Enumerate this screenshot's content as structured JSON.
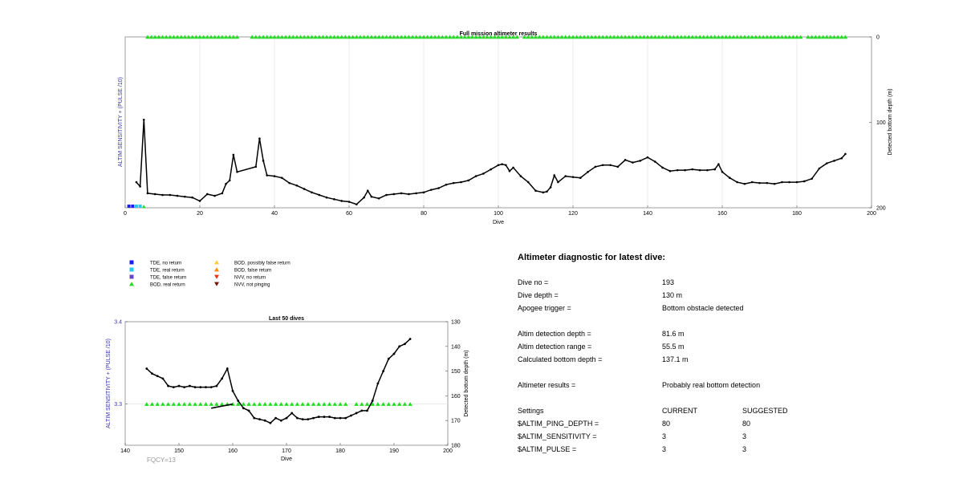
{
  "chart_data": [
    {
      "type": "line",
      "title": "Full mission altimeter results",
      "xlabel": "Dive",
      "ylabel_left": "ALTIM SENSITIVITY + (PULSE /10)",
      "ylabel_right": "Detected bottom depth (m)",
      "xlim": [
        0,
        200
      ],
      "xticks": [
        0,
        20,
        40,
        60,
        80,
        100,
        120,
        140,
        160,
        180,
        200
      ],
      "ylim_right": [
        200,
        0
      ],
      "yticks_right": [
        0,
        100,
        200
      ],
      "grid": "vertical",
      "series": [
        {
          "kind": "bottom_depth_line",
          "color": "#000000",
          "x": [
            3,
            4,
            5,
            6,
            8,
            10,
            12,
            14,
            16,
            18,
            20,
            22,
            24,
            26,
            27,
            28,
            29,
            30,
            35,
            36,
            37,
            38,
            40,
            42,
            44,
            46,
            48,
            50,
            52,
            54,
            56,
            58,
            60,
            62,
            64,
            65,
            66,
            68,
            70,
            72,
            74,
            76,
            78,
            80,
            82,
            84,
            86,
            88,
            90,
            92,
            94,
            96,
            98,
            100,
            101,
            102,
            103,
            104,
            106,
            108,
            110,
            112,
            113,
            114,
            115,
            116,
            118,
            120,
            122,
            124,
            126,
            128,
            130,
            132,
            134,
            136,
            138,
            140,
            142,
            144,
            146,
            148,
            150,
            152,
            154,
            156,
            158,
            159,
            160,
            162,
            164,
            166,
            168,
            170,
            172,
            174,
            176,
            178,
            180,
            182,
            184,
            186,
            188,
            190,
            192,
            193
          ],
          "y": [
            170,
            175,
            97,
            183,
            184,
            185,
            185,
            186,
            187,
            188,
            192,
            184,
            186,
            183,
            172,
            168,
            138,
            158,
            152,
            119,
            145,
            162,
            163,
            165,
            171,
            174,
            178,
            182,
            185,
            188,
            190,
            192,
            193,
            196,
            188,
            180,
            187,
            189,
            185,
            184,
            183,
            184,
            183,
            182,
            179,
            177,
            173,
            171,
            170,
            168,
            163,
            160,
            155,
            150,
            149,
            150,
            157,
            153,
            163,
            170,
            180,
            182,
            181,
            176,
            162,
            170,
            163,
            164,
            165,
            158,
            152,
            150,
            150,
            152,
            144,
            147,
            145,
            141,
            146,
            153,
            157,
            156,
            156,
            155,
            156,
            156,
            155,
            149,
            158,
            165,
            170,
            172,
            170,
            171,
            171,
            172,
            170,
            170,
            170,
            169,
            166,
            154,
            148,
            145,
            142,
            137
          ]
        }
      ],
      "markers_top": {
        "label": "BOD, real return",
        "color": "#22dd22",
        "symbol": "triangle-up",
        "depth": 0,
        "dive_ranges": [
          [
            6,
            30
          ],
          [
            34,
            40
          ],
          [
            41,
            105
          ],
          [
            107,
            181
          ],
          [
            183,
            193
          ]
        ]
      },
      "markers_bottom": [
        {
          "label": "TDE, no return",
          "color": "#1a1aff",
          "x": [
            1,
            2
          ]
        },
        {
          "label": "TDE, real return",
          "color": "#22ccee",
          "x": [
            3,
            4
          ]
        },
        {
          "label": "BOD, real return",
          "color": "#22dd22",
          "x": [
            5
          ]
        }
      ]
    },
    {
      "type": "line",
      "title": "Last 50 dives",
      "xlabel": "Dive",
      "ylabel_left": "ALTIM SENSITIVITY + (PULSE /10)",
      "ylabel_right": "Detected bottom depth (m)",
      "xlim": [
        140,
        200
      ],
      "xticks": [
        140,
        150,
        160,
        170,
        180,
        190,
        200
      ],
      "ylim_left": [
        3.25,
        3.4
      ],
      "yticks_left": [
        3.3,
        3.4
      ],
      "ylim_right": [
        180,
        130
      ],
      "yticks_right": [
        130,
        140,
        150,
        160,
        170,
        180
      ],
      "series": [
        {
          "kind": "bottom_depth_line",
          "color": "#000000",
          "x": [
            144,
            145,
            146,
            147,
            148,
            149,
            150,
            151,
            152,
            153,
            154,
            155,
            156,
            157,
            158,
            159,
            160,
            161,
            162,
            163,
            164,
            165,
            166,
            167,
            168,
            169,
            170,
            171,
            172,
            173,
            174,
            175,
            176,
            177,
            178,
            179,
            180,
            181,
            182,
            183,
            184,
            185,
            186,
            187,
            188,
            189,
            190,
            191,
            192,
            193
          ],
          "y": [
            149,
            151,
            152,
            153,
            156,
            156.5,
            156,
            156.5,
            156,
            156.5,
            156.5,
            156.5,
            156.5,
            156,
            153,
            149,
            158,
            162,
            165,
            166,
            169,
            169.5,
            170,
            171,
            169,
            170,
            169,
            167,
            169,
            169.5,
            169.5,
            169,
            168.5,
            168.5,
            168.5,
            169,
            169,
            169,
            168,
            167,
            166,
            166,
            162,
            155,
            150,
            145,
            143,
            140,
            139,
            137
          ]
        },
        {
          "kind": "sensitivity_line",
          "color": "#000000",
          "x": [
            156,
            160
          ],
          "y": [
            3.295,
            3.3
          ]
        }
      ],
      "markers": {
        "label": "BOD, real return",
        "color": "#22dd22",
        "symbol": "triangle-up",
        "y": 3.3,
        "dive_ranges": [
          [
            144,
            181
          ],
          [
            183,
            193
          ]
        ]
      },
      "annotation": "FQCY=13"
    }
  ],
  "legend": [
    {
      "label": "TDE, no return",
      "color": "#1a1aff",
      "symbol": "square"
    },
    {
      "label": "TDE, real return",
      "color": "#22ccee",
      "symbol": "square"
    },
    {
      "label": "TDE, false return",
      "color": "#6644cc",
      "symbol": "square"
    },
    {
      "label": "BOD, real return",
      "color": "#22dd22",
      "symbol": "triangle-up"
    },
    {
      "label": "BOD, possibly false return",
      "color": "#ffcc33",
      "symbol": "triangle-up"
    },
    {
      "label": "BOD, false return",
      "color": "#ff8800",
      "symbol": "triangle-up"
    },
    {
      "label": "NVV, no return",
      "color": "#ee3311",
      "symbol": "triangle-down"
    },
    {
      "label": "NVV, not pinging",
      "color": "#771100",
      "symbol": "triangle-down"
    }
  ],
  "diagnostic": {
    "title": "Altimeter diagnostic for latest dive:",
    "rows": [
      {
        "label": "Dive no =",
        "value": "193"
      },
      {
        "label": "Dive depth =",
        "value": "130 m"
      },
      {
        "label": "Apogee trigger =",
        "value": "Bottom obstacle detected"
      },
      {
        "label": "Altim detection depth =",
        "value": "81.6 m"
      },
      {
        "label": "Altim detection range =",
        "value": "55.5 m"
      },
      {
        "label": "Calculated bottom depth =",
        "value": "137.1 m"
      },
      {
        "label": "Altimeter results =",
        "value": "Probably real bottom detection"
      }
    ],
    "settings": {
      "header": [
        "Settings",
        "CURRENT",
        "SUGGESTED"
      ],
      "rows": [
        {
          "name": "$ALTIM_PING_DEPTH =",
          "current": "80",
          "suggested": "80"
        },
        {
          "name": "$ALTIM_SENSITIVITY =",
          "current": "3",
          "suggested": "3"
        },
        {
          "name": "$ALTIM_PULSE =",
          "current": "3",
          "suggested": "3"
        }
      ]
    }
  }
}
